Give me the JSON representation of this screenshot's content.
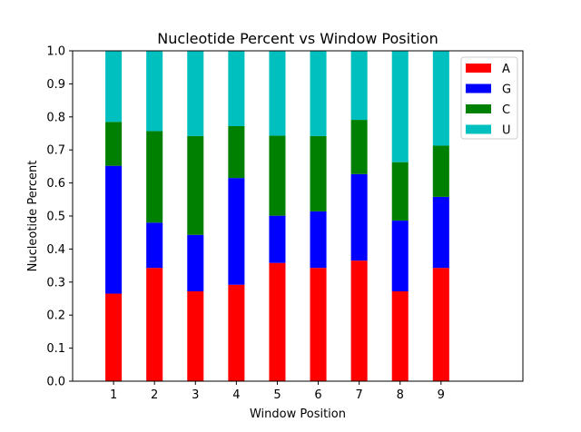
{
  "chart_data": {
    "type": "bar",
    "stacked": true,
    "title": "Nucleotide Percent vs Window Position",
    "xlabel": "Window Position",
    "ylabel": "Nucleotide Percent",
    "categories": [
      "1",
      "2",
      "3",
      "4",
      "5",
      "6",
      "7",
      "8",
      "9"
    ],
    "xlim": [
      0,
      11
    ],
    "ylim": [
      0.0,
      1.0
    ],
    "yticks": [
      "0.0",
      "0.1",
      "0.2",
      "0.3",
      "0.4",
      "0.5",
      "0.6",
      "0.7",
      "0.8",
      "0.9",
      "1.0"
    ],
    "grid": false,
    "legend_position": "top-right",
    "series": [
      {
        "name": "A",
        "color": "#ff0000",
        "values": [
          0.265,
          0.343,
          0.272,
          0.292,
          0.358,
          0.343,
          0.365,
          0.272,
          0.343
        ]
      },
      {
        "name": "G",
        "color": "#0000ff",
        "values": [
          0.387,
          0.137,
          0.171,
          0.323,
          0.143,
          0.171,
          0.262,
          0.214,
          0.215
        ]
      },
      {
        "name": "C",
        "color": "#008000",
        "values": [
          0.133,
          0.277,
          0.299,
          0.157,
          0.242,
          0.228,
          0.164,
          0.177,
          0.155
        ]
      },
      {
        "name": "U",
        "color": "#00bfbf",
        "values": [
          0.215,
          0.243,
          0.258,
          0.228,
          0.257,
          0.258,
          0.209,
          0.337,
          0.287
        ]
      }
    ]
  }
}
